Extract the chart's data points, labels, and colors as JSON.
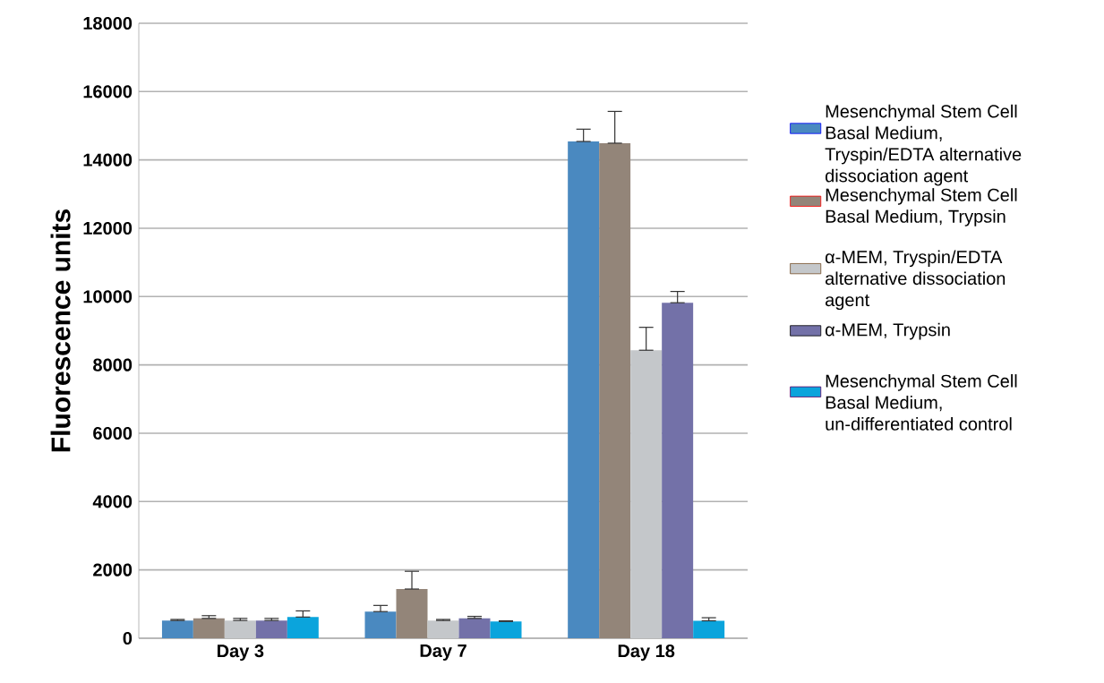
{
  "chart_data": {
    "type": "bar",
    "ylabel": "Fluorescence units",
    "categories": [
      "Day 3",
      "Day 7",
      "Day 18"
    ],
    "series": [
      {
        "name": "Mesenchymal Stem Cell Basal Medium, Tryspin/EDTA alternative dissociation agent",
        "color": "#4a89c0",
        "values": [
          520,
          780,
          14540
        ],
        "errors": [
          [
            520,
            550
          ],
          [
            780,
            960
          ],
          [
            14540,
            14900
          ]
        ]
      },
      {
        "name": "Mesenchymal Stem Cell Basal Medium, Trypsin",
        "color": "#938579",
        "values": [
          580,
          1440,
          14490
        ],
        "errors": [
          [
            580,
            660
          ],
          [
            1440,
            1960
          ],
          [
            14490,
            15420
          ]
        ]
      },
      {
        "name": "α-MEM, Tryspin/EDTA alternative dissociation agent",
        "color": "#c4c7ca",
        "values": [
          520,
          520,
          8430
        ],
        "errors": [
          [
            520,
            580
          ],
          [
            520,
            550
          ],
          [
            8430,
            9100
          ]
        ]
      },
      {
        "name": "α-MEM, Trypsin",
        "color": "#7371a8",
        "values": [
          520,
          580,
          9820
        ],
        "errors": [
          [
            520,
            580
          ],
          [
            580,
            640
          ],
          [
            9820,
            10150
          ]
        ]
      },
      {
        "name": "Mesenchymal Stem Cell Basal Medium, un-differentiated control",
        "color": "#0ba4dc",
        "values": [
          620,
          490,
          510
        ],
        "errors": [
          [
            620,
            800
          ],
          [
            490,
            510
          ],
          [
            510,
            600
          ]
        ]
      }
    ],
    "ylim": [
      0,
      18000
    ],
    "yticks": [
      0,
      2000,
      4000,
      6000,
      8000,
      10000,
      12000,
      14000,
      16000,
      18000
    ],
    "grid": "y",
    "legend": "right"
  }
}
